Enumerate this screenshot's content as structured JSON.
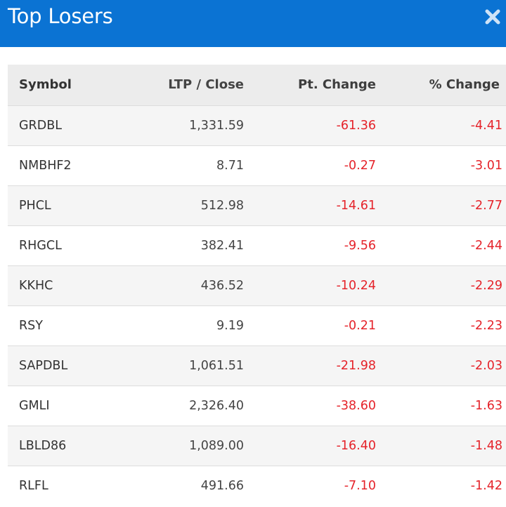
{
  "header": {
    "title": "Top Losers",
    "close_icon": "close-icon",
    "background": "#0b73d3"
  },
  "table": {
    "columns": {
      "symbol": "Symbol",
      "ltp": "LTP / Close",
      "pt_change": "Pt. Change",
      "pct_change": "% Change"
    },
    "negative_color": "#e5232a",
    "rows": [
      {
        "symbol": "GRDBL",
        "ltp": "1,331.59",
        "pt_change": "-61.36",
        "pct_change": "-4.41"
      },
      {
        "symbol": "NMBHF2",
        "ltp": "8.71",
        "pt_change": "-0.27",
        "pct_change": "-3.01"
      },
      {
        "symbol": "PHCL",
        "ltp": "512.98",
        "pt_change": "-14.61",
        "pct_change": "-2.77"
      },
      {
        "symbol": "RHGCL",
        "ltp": "382.41",
        "pt_change": "-9.56",
        "pct_change": "-2.44"
      },
      {
        "symbol": "KKHC",
        "ltp": "436.52",
        "pt_change": "-10.24",
        "pct_change": "-2.29"
      },
      {
        "symbol": "RSY",
        "ltp": "9.19",
        "pt_change": "-0.21",
        "pct_change": "-2.23"
      },
      {
        "symbol": "SAPDBL",
        "ltp": "1,061.51",
        "pt_change": "-21.98",
        "pct_change": "-2.03"
      },
      {
        "symbol": "GMLI",
        "ltp": "2,326.40",
        "pt_change": "-38.60",
        "pct_change": "-1.63"
      },
      {
        "symbol": "LBLD86",
        "ltp": "1,089.00",
        "pt_change": "-16.40",
        "pct_change": "-1.48"
      },
      {
        "symbol": "RLFL",
        "ltp": "491.66",
        "pt_change": "-7.10",
        "pct_change": "-1.42"
      }
    ]
  }
}
